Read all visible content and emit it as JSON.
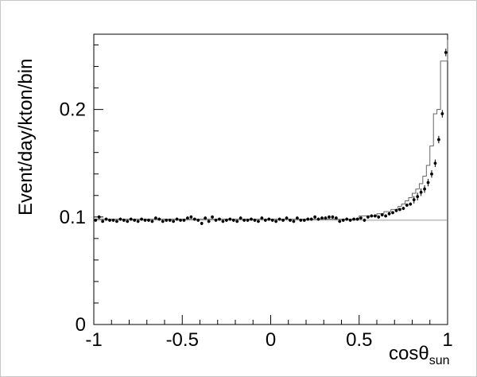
{
  "chart_data": {
    "type": "scatter",
    "title": "",
    "ylabel": "Event/day/kton/bin",
    "xlabel": {
      "main": "cos",
      "theta": "θ",
      "sub": "sun"
    },
    "xlim": [
      -1,
      1
    ],
    "ylim": [
      0,
      0.27
    ],
    "x_ticks": [
      -1,
      -0.5,
      0,
      0.5,
      1
    ],
    "x_tick_labels": [
      "-1",
      "-0.5",
      "0",
      "0.5",
      "1"
    ],
    "y_ticks": [
      0,
      0.1,
      0.2
    ],
    "y_tick_labels": [
      "0",
      "0.1",
      "0.2"
    ],
    "grid": false,
    "background_level": 0.097,
    "series": [
      {
        "kind": "points_with_errors",
        "bins": 100,
        "x_centers": [
          -0.99,
          -0.97,
          -0.95,
          -0.93,
          -0.91,
          -0.89,
          -0.87,
          -0.85,
          -0.83,
          -0.81,
          -0.79,
          -0.77,
          -0.75,
          -0.73,
          -0.71,
          -0.69,
          -0.67,
          -0.65,
          -0.63,
          -0.61,
          -0.59,
          -0.57,
          -0.55,
          -0.53,
          -0.51,
          -0.49,
          -0.47,
          -0.45,
          -0.43,
          -0.41,
          -0.39,
          -0.37,
          -0.35,
          -0.33,
          -0.31,
          -0.29,
          -0.27,
          -0.25,
          -0.23,
          -0.21,
          -0.19,
          -0.17,
          -0.15,
          -0.13,
          -0.11,
          -0.09,
          -0.07,
          -0.05,
          -0.03,
          -0.01,
          0.01,
          0.03,
          0.05,
          0.07,
          0.09,
          0.11,
          0.13,
          0.15,
          0.17,
          0.19,
          0.21,
          0.23,
          0.25,
          0.27,
          0.29,
          0.31,
          0.33,
          0.35,
          0.37,
          0.39,
          0.41,
          0.43,
          0.45,
          0.47,
          0.49,
          0.51,
          0.53,
          0.55,
          0.57,
          0.59,
          0.61,
          0.63,
          0.65,
          0.67,
          0.69,
          0.71,
          0.73,
          0.75,
          0.77,
          0.79,
          0.81,
          0.83,
          0.85,
          0.87,
          0.89,
          0.91,
          0.93,
          0.95,
          0.97,
          0.99
        ],
        "values": [
          0.097,
          0.1,
          0.096,
          0.098,
          0.097,
          0.097,
          0.096,
          0.098,
          0.097,
          0.096,
          0.098,
          0.097,
          0.096,
          0.098,
          0.097,
          0.097,
          0.096,
          0.099,
          0.098,
          0.096,
          0.097,
          0.097,
          0.096,
          0.098,
          0.097,
          0.097,
          0.099,
          0.1,
          0.098,
          0.097,
          0.094,
          0.099,
          0.096,
          0.1,
          0.097,
          0.098,
          0.096,
          0.097,
          0.098,
          0.097,
          0.096,
          0.099,
          0.097,
          0.097,
          0.098,
          0.097,
          0.096,
          0.099,
          0.097,
          0.098,
          0.097,
          0.096,
          0.098,
          0.097,
          0.099,
          0.097,
          0.096,
          0.099,
          0.097,
          0.097,
          0.098,
          0.098,
          0.1,
          0.098,
          0.099,
          0.099,
          0.1,
          0.1,
          0.099,
          0.096,
          0.097,
          0.098,
          0.097,
          0.098,
          0.098,
          0.099,
          0.097,
          0.1,
          0.101,
          0.101,
          0.1,
          0.102,
          0.101,
          0.103,
          0.104,
          0.106,
          0.107,
          0.108,
          0.111,
          0.112,
          0.116,
          0.119,
          0.123,
          0.126,
          0.132,
          0.14,
          0.15,
          0.172,
          0.196,
          0.253
        ],
        "error": 0.0015
      },
      {
        "kind": "step_histogram",
        "edges": [
          -1,
          0.5,
          0.6,
          0.64,
          0.68,
          0.72,
          0.74,
          0.76,
          0.78,
          0.8,
          0.82,
          0.84,
          0.86,
          0.88,
          0.9,
          0.92,
          0.94,
          0.96,
          0.98,
          1.0
        ],
        "values": [
          0.098,
          0.101,
          0.103,
          0.105,
          0.107,
          0.11,
          0.112,
          0.115,
          0.118,
          0.122,
          0.126,
          0.131,
          0.138,
          0.148,
          0.166,
          0.196,
          0.2,
          0.245,
          0.245
        ]
      }
    ]
  }
}
